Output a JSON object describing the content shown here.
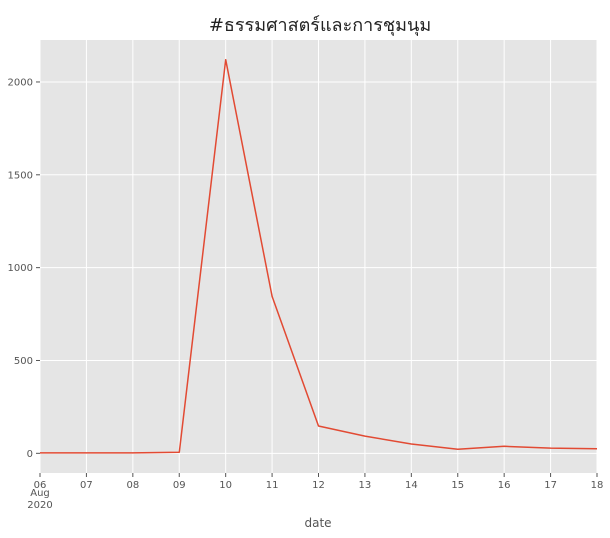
{
  "chart_data": {
    "type": "line",
    "title": "#ธรรมศาสตร์และการชุมนุม",
    "xlabel": "date",
    "ylabel": "",
    "x": [
      "2020-08-06",
      "2020-08-07",
      "2020-08-08",
      "2020-08-09",
      "2020-08-10",
      "2020-08-11",
      "2020-08-12",
      "2020-08-13",
      "2020-08-14",
      "2020-08-15",
      "2020-08-16",
      "2020-08-17",
      "2020-08-18"
    ],
    "x_tick_labels": [
      "06",
      "07",
      "08",
      "09",
      "10",
      "11",
      "12",
      "13",
      "14",
      "15",
      "16",
      "17",
      "18"
    ],
    "x_tick_sublabel_month": "Aug",
    "x_tick_sublabel_year": "2020",
    "series": [
      {
        "values": [
          2,
          2,
          2,
          6,
          2120,
          845,
          147,
          93,
          50,
          22,
          38,
          28,
          25
        ]
      }
    ],
    "y_ticks": [
      0,
      500,
      1000,
      1500,
      2000
    ],
    "ylim": [
      -106,
      2226
    ],
    "grid": true,
    "legend": "none",
    "colors": {
      "line": "#E24A33",
      "plot_bg": "#E5E5E5",
      "grid": "#FFFFFF"
    }
  }
}
